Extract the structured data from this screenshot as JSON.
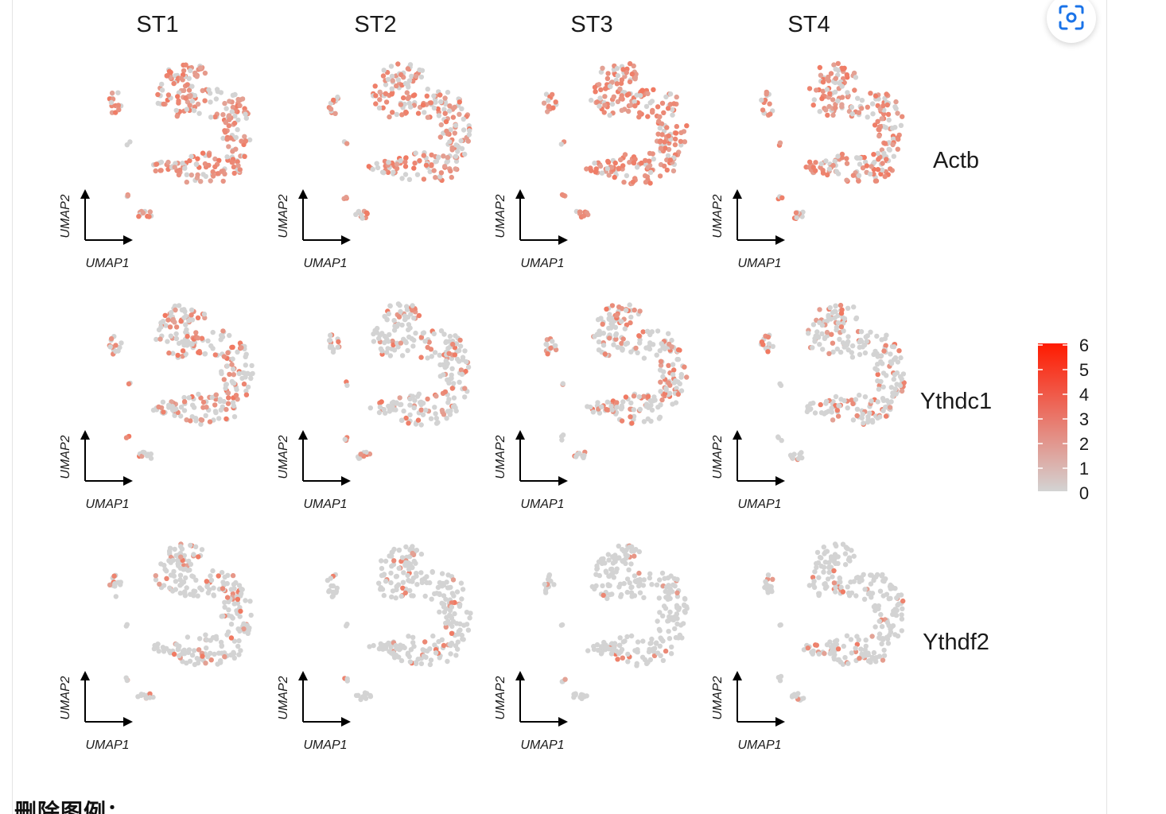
{
  "figure": {
    "columns": [
      "ST1",
      "ST2",
      "ST3",
      "ST4"
    ],
    "rows": [
      {
        "gene": "Actb",
        "level": [
          0.7,
          0.62,
          0.72,
          0.68
        ]
      },
      {
        "gene": "Ythdc1",
        "level": [
          0.38,
          0.26,
          0.3,
          0.3
        ]
      },
      {
        "gene": "Ythdf2",
        "level": [
          0.18,
          0.12,
          0.06,
          0.12
        ]
      }
    ],
    "axis": {
      "x_label": "UMAP1",
      "y_label": "UMAP2"
    },
    "legend": {
      "ticks": [
        "6",
        "5",
        "4",
        "3",
        "2",
        "1",
        "0"
      ],
      "low_color": "#d3d3d3",
      "high_color": "#ff1a00"
    }
  },
  "toolbar": {
    "scan_icon": "scan-icon"
  },
  "caption": "删除图例："
}
